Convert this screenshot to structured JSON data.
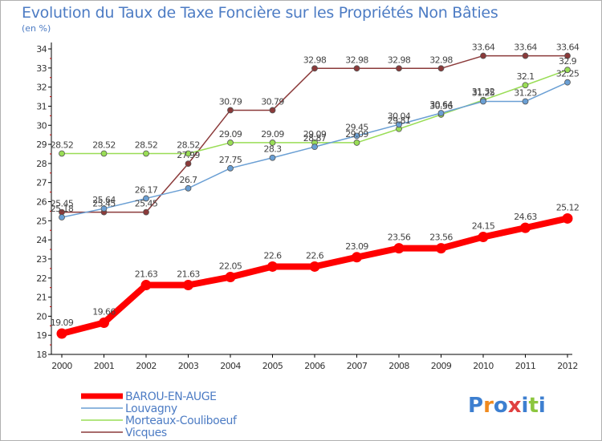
{
  "title": "Evolution du Taux de Taxe Foncière sur les Propriétés Non Bâties",
  "unit": "(en %)",
  "logo": "Proxiti",
  "chart_data": {
    "type": "line",
    "x": [
      "2000",
      "2001",
      "2002",
      "2003",
      "2004",
      "2005",
      "2006",
      "2007",
      "2008",
      "2009",
      "2010",
      "2011",
      "2012"
    ],
    "ylim": [
      18,
      34
    ],
    "yticks": [
      18,
      19,
      20,
      21,
      22,
      23,
      24,
      25,
      26,
      27,
      28,
      29,
      30,
      31,
      32,
      33,
      34
    ],
    "grid": false,
    "legend": "bottom-left",
    "series": [
      {
        "name": "BAROU-EN-AUGE",
        "color": "#ff0000",
        "values": [
          19.09,
          19.66,
          21.63,
          21.63,
          22.05,
          22.6,
          22.6,
          23.09,
          23.56,
          23.56,
          24.15,
          24.63,
          25.12
        ],
        "labels": [
          "19.09",
          "19.66",
          "21.63",
          "21.63",
          "22.05",
          "22.6",
          "22.6",
          "23.09",
          "23.56",
          "23.56",
          "24.15",
          "24.63",
          "25.12"
        ]
      },
      {
        "name": "Louvagny",
        "color": "#6a9fd4",
        "values": [
          25.18,
          25.64,
          26.17,
          26.7,
          27.75,
          28.3,
          28.87,
          29.45,
          30.04,
          30.64,
          31.25,
          31.25,
          32.25
        ],
        "labels": [
          "25.18",
          "25.64",
          "26.17",
          "26.7",
          "27.75",
          "28.3",
          "28.87",
          "29.45",
          "30.04",
          "30.64",
          "31.25",
          "31.25",
          "32.25"
        ]
      },
      {
        "name": "Morteaux-Couliboeuf",
        "color": "#99dd55",
        "values": [
          28.52,
          28.52,
          28.52,
          28.52,
          29.09,
          29.09,
          29.09,
          29.09,
          29.81,
          30.56,
          31.32,
          32.1,
          32.9
        ],
        "labels": [
          "28.52",
          "28.52",
          "28.52",
          "28.52",
          "29.09",
          "29.09",
          "29.09",
          "29.09",
          "29.81",
          "30.56",
          "31.32",
          "32.1",
          "32.9"
        ]
      },
      {
        "name": "Vicques",
        "color": "#8b3a3a",
        "values": [
          25.45,
          25.45,
          25.45,
          27.99,
          30.79,
          30.79,
          32.98,
          32.98,
          32.98,
          32.98,
          33.64,
          33.64,
          33.64
        ],
        "labels": [
          "25.45",
          "25.45",
          "25.45",
          "27.99",
          "30.79",
          "30.79",
          "32.98",
          "32.98",
          "32.98",
          "32.98",
          "33.64",
          "33.64",
          "33.64"
        ]
      }
    ]
  }
}
